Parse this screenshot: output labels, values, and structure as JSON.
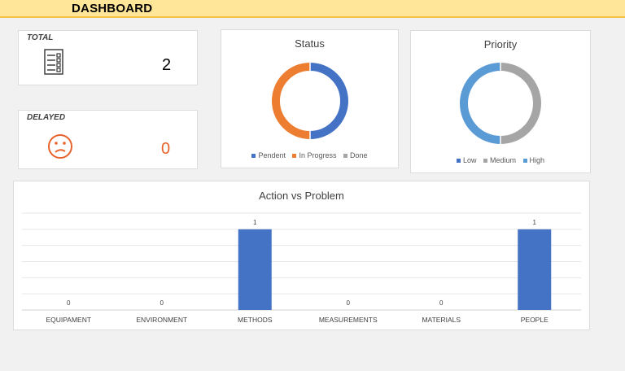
{
  "header": {
    "title": "DASHBOARD"
  },
  "kpis": {
    "total": {
      "label": "TOTAL",
      "value": "2",
      "icon": "checklist-icon"
    },
    "delayed": {
      "label": "DELAYED",
      "value": "0",
      "icon": "sad-face-icon",
      "color": "#e8632c"
    }
  },
  "status_chart": {
    "title": "Status",
    "legend": [
      {
        "label": "Pendent",
        "color": "#4472c4"
      },
      {
        "label": "In Progress",
        "color": "#ed7d31"
      },
      {
        "label": "Done",
        "color": "#a5a5a5"
      }
    ],
    "values": [
      1,
      1,
      0
    ]
  },
  "priority_chart": {
    "title": "Priority",
    "legend": [
      {
        "label": "Low",
        "color": "#4472c4"
      },
      {
        "label": "Medium",
        "color": "#a5a5a5"
      },
      {
        "label": "High",
        "color": "#5b9bd5"
      }
    ],
    "values": [
      0,
      1,
      1
    ]
  },
  "chart_data": {
    "type": "bar",
    "title": "Action vs Problem",
    "categories": [
      "EQUIPAMENT",
      "ENVIRONMENT",
      "METHODS",
      "MEASUREMENTS",
      "MATERIALS",
      "PEOPLE"
    ],
    "values": [
      0,
      0,
      1,
      0,
      0,
      1
    ],
    "ylim": [
      0,
      1.2
    ],
    "grid": true,
    "bar_color": "#4472c4"
  }
}
